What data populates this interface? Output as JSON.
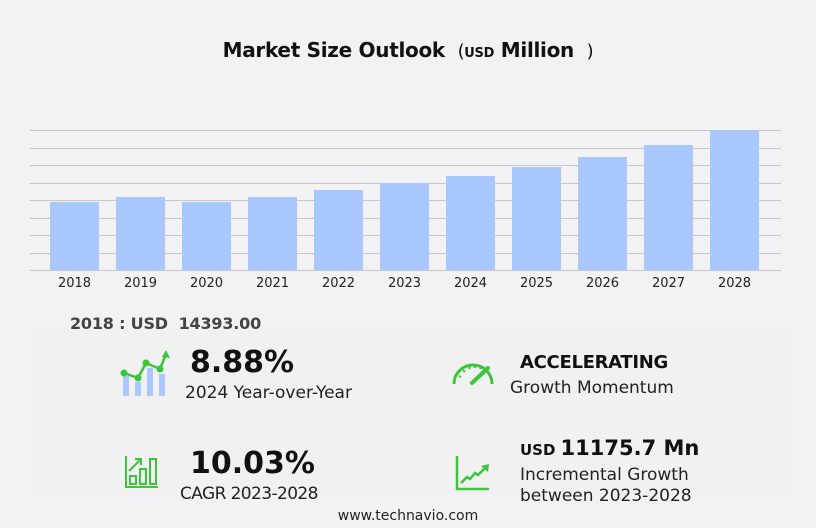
{
  "header": {
    "title": "Market Size Outlook",
    "unit_prefix": "USD",
    "unit": "Million",
    "paren_open": "(",
    "paren_close": ")"
  },
  "chart_data": {
    "type": "bar",
    "title": "Market Size Outlook (USD Million)",
    "xlabel": "",
    "ylabel": "USD Million",
    "categories": [
      "2018",
      "2019",
      "2020",
      "2021",
      "2022",
      "2023",
      "2024",
      "2025",
      "2026",
      "2027",
      "2028"
    ],
    "values": [
      14393.0,
      15390,
      14330,
      15390,
      16860,
      18250,
      19870,
      21700,
      23810,
      26340,
      29420
    ],
    "ylim": [
      0,
      29500
    ],
    "grid": true,
    "legend": "none",
    "bar_color": "#a8c8ff",
    "gridline_count": 9
  },
  "summary": {
    "base_year_label": "2018 : USD  14393.00"
  },
  "stats": {
    "yoy": {
      "value": "8.88%",
      "label": "2024 Year-over-Year",
      "icon": "bar-trend-icon"
    },
    "momentum": {
      "value": "ACCELERATING",
      "label": "Growth Momentum",
      "icon": "speedometer-icon"
    },
    "cagr": {
      "value": "10.03%",
      "label": "CAGR 2023-2028",
      "icon": "growth-chart-icon"
    },
    "incremental": {
      "prefix": "USD",
      "value": "11175.7 Mn",
      "label_line1": "Incremental Growth",
      "label_line2": "between 2023-2028",
      "icon": "line-trend-icon"
    }
  },
  "footer": {
    "source": "www.technavio.com"
  },
  "colors": {
    "accent_green": "#3cc43c",
    "bar_blue": "#a8c8ff",
    "background": "#f2f2f4"
  }
}
